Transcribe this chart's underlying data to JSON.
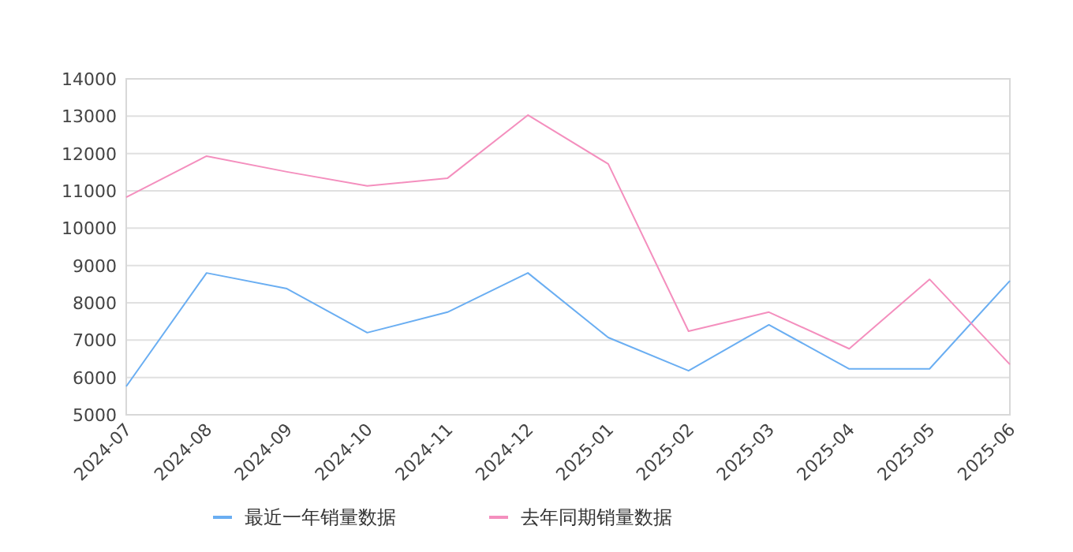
{
  "chart_data": {
    "type": "line",
    "categories": [
      "2024-07",
      "2024-08",
      "2024-09",
      "2024-10",
      "2024-11",
      "2024-12",
      "2025-01",
      "2025-02",
      "2025-03",
      "2025-04",
      "2025-05",
      "2025-06"
    ],
    "series": [
      {
        "name": "最近一年销量数据",
        "color": "#6aaef2",
        "values": [
          5760,
          8800,
          8380,
          7200,
          7750,
          8800,
          7070,
          6180,
          7410,
          6230,
          6230,
          8590
        ]
      },
      {
        "name": "去年同期销量数据",
        "color": "#f48fbe",
        "values": [
          10830,
          11930,
          11510,
          11130,
          11340,
          13030,
          11720,
          7240,
          7750,
          6770,
          8630,
          6350
        ]
      }
    ],
    "ylim": [
      5000,
      14000
    ],
    "yticks": [
      5000,
      6000,
      7000,
      8000,
      9000,
      10000,
      11000,
      12000,
      13000,
      14000
    ],
    "grid": "y",
    "legend": "bottom",
    "marker": "none",
    "line_style": "solid"
  }
}
